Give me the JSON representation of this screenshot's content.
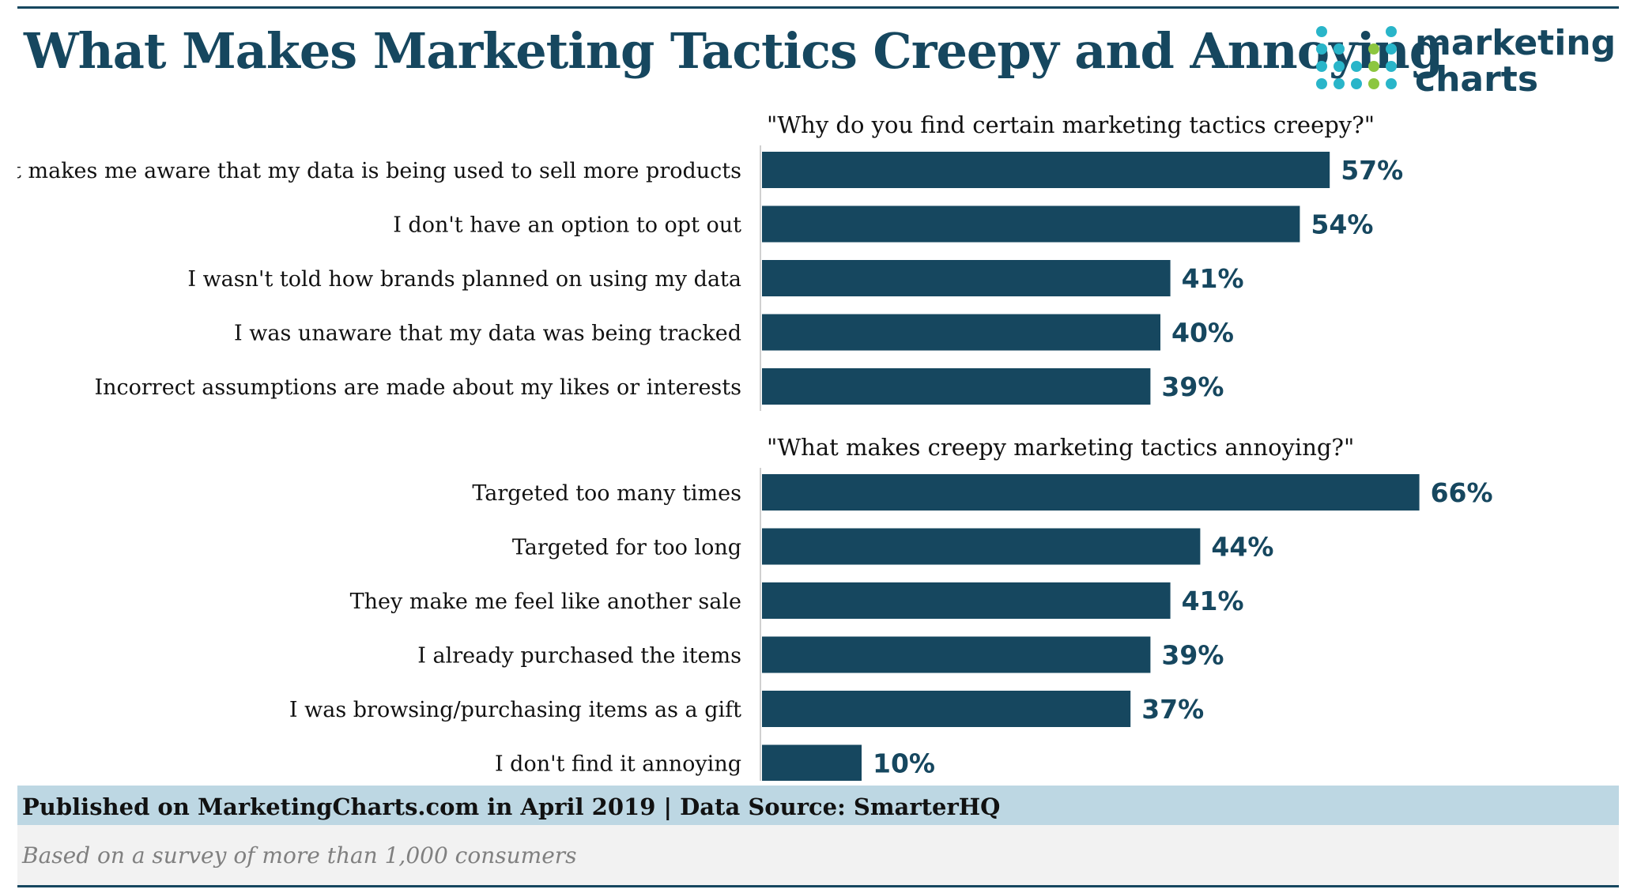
{
  "header": {
    "title": "What Makes Marketing Tactics Creepy and Annoying",
    "logo_line1": "marketing",
    "logo_line2": "charts"
  },
  "colors": {
    "bar": "#16475f",
    "accent_teal": "#29b5c9",
    "accent_green": "#8cc63f",
    "footer_band": "#bdd7e3"
  },
  "chart_data": {
    "type": "bar",
    "orientation": "horizontal",
    "title": "What Makes Marketing Tactics Creepy and Annoying",
    "unit": "%",
    "groups": [
      {
        "subtitle": "\"Why do you find certain marketing tactics creepy?\"",
        "categories": [
          "It makes me aware that my data is being used to sell more products",
          "I don't have an option to opt out",
          "I wasn't told how brands planned on using my data",
          "I was unaware that my data was being tracked",
          "Incorrect assumptions are made about my likes or interests"
        ],
        "values": [
          57,
          54,
          41,
          40,
          39
        ]
      },
      {
        "subtitle": "\"What makes creepy marketing tactics annoying?\"",
        "categories": [
          "Targeted too many times",
          "Targeted for too long",
          "They make me feel like another sale",
          "I already purchased the items",
          "I was browsing/purchasing items as a gift",
          "I don't find it annoying"
        ],
        "values": [
          66,
          44,
          41,
          39,
          37,
          10
        ]
      }
    ],
    "xlim": [
      0,
      66
    ]
  },
  "footer": {
    "published": "Published on MarketingCharts.com in April 2019 | Data Source: SmarterHQ",
    "note": "Based on a survey of more than 1,000 consumers"
  }
}
